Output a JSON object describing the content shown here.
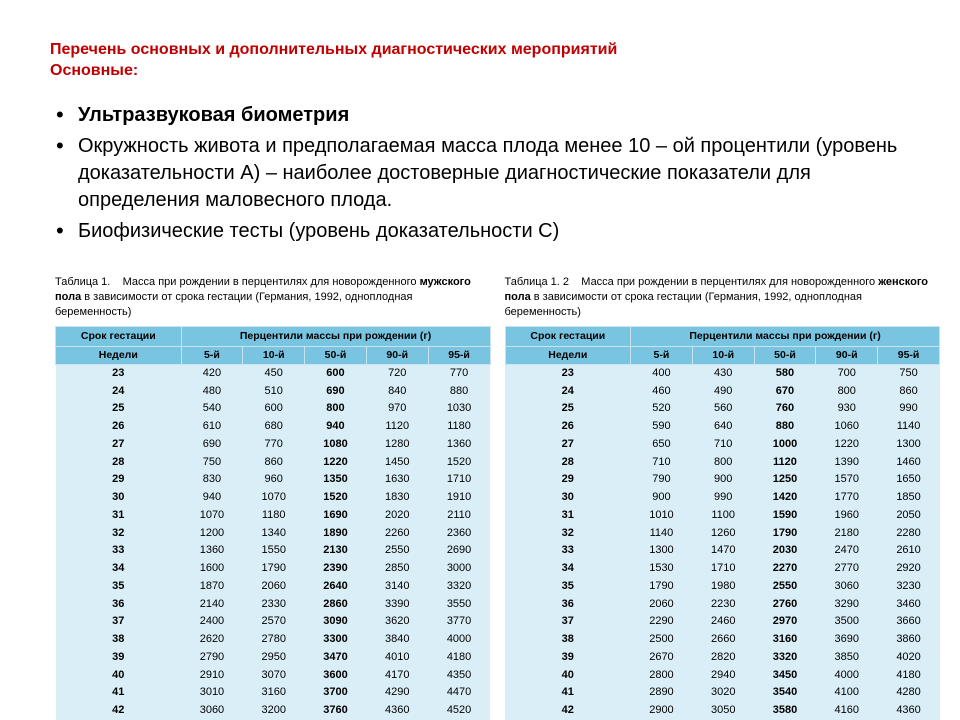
{
  "title_line1": "Перечень основных и дополнительных диагностических мероприятий",
  "title_line2": "Основные:",
  "bullets": [
    "Ультразвуковая биометрия",
    "Окружность живота и предполагаемая масса плода менее 10 – ой процентили (уровень доказательности А) – наиболее достоверные диагностические показатели для определения маловесного плода.",
    "Биофизические тесты (уровень доказательности С)"
  ],
  "table_header_group": "Перцентили массы при рождении (г)",
  "table_header_week_lbl_top": "Срок гестации",
  "table_header_week_lbl_bot": "Недели",
  "percentile_labels": [
    "5-й",
    "10-й",
    "50-й",
    "90-й",
    "95-й"
  ],
  "table_male": {
    "caption_prefix": "Таблица 1.",
    "caption_body": "Масса при рождении в перцентилях для новорожденного ",
    "caption_highlight": "мужского пола",
    "caption_suffix": " в зависимости от срока гестации (Германия, 1992, одноплодная беременность)",
    "rows": [
      [
        "23",
        "420",
        "450",
        "600",
        "720",
        "770"
      ],
      [
        "24",
        "480",
        "510",
        "690",
        "840",
        "880"
      ],
      [
        "25",
        "540",
        "600",
        "800",
        "970",
        "1030"
      ],
      [
        "26",
        "610",
        "680",
        "940",
        "1120",
        "1180"
      ],
      [
        "27",
        "690",
        "770",
        "1080",
        "1280",
        "1360"
      ],
      [
        "28",
        "750",
        "860",
        "1220",
        "1450",
        "1520"
      ],
      [
        "29",
        "830",
        "960",
        "1350",
        "1630",
        "1710"
      ],
      [
        "30",
        "940",
        "1070",
        "1520",
        "1830",
        "1910"
      ],
      [
        "31",
        "1070",
        "1180",
        "1690",
        "2020",
        "2110"
      ],
      [
        "32",
        "1200",
        "1340",
        "1890",
        "2260",
        "2360"
      ],
      [
        "33",
        "1360",
        "1550",
        "2130",
        "2550",
        "2690"
      ],
      [
        "34",
        "1600",
        "1790",
        "2390",
        "2850",
        "3000"
      ],
      [
        "35",
        "1870",
        "2060",
        "2640",
        "3140",
        "3320"
      ],
      [
        "36",
        "2140",
        "2330",
        "2860",
        "3390",
        "3550"
      ],
      [
        "37",
        "2400",
        "2570",
        "3090",
        "3620",
        "3770"
      ],
      [
        "38",
        "2620",
        "2780",
        "3300",
        "3840",
        "4000"
      ],
      [
        "39",
        "2790",
        "2950",
        "3470",
        "4010",
        "4180"
      ],
      [
        "40",
        "2910",
        "3070",
        "3600",
        "4170",
        "4350"
      ],
      [
        "41",
        "3010",
        "3160",
        "3700",
        "4290",
        "4470"
      ],
      [
        "42",
        "3060",
        "3200",
        "3760",
        "4360",
        "4520"
      ]
    ]
  },
  "table_female": {
    "caption_prefix": "Таблица 1. 2",
    "caption_body": "Масса при рождении в перцентилях для новорожденного ",
    "caption_highlight": "женского пола",
    "caption_suffix": " в зависимости от срока гестации (Германия, 1992, одноплодная беременность)",
    "rows": [
      [
        "23",
        "400",
        "430",
        "580",
        "700",
        "750"
      ],
      [
        "24",
        "460",
        "490",
        "670",
        "800",
        "860"
      ],
      [
        "25",
        "520",
        "560",
        "760",
        "930",
        "990"
      ],
      [
        "26",
        "590",
        "640",
        "880",
        "1060",
        "1140"
      ],
      [
        "27",
        "650",
        "710",
        "1000",
        "1220",
        "1300"
      ],
      [
        "28",
        "710",
        "800",
        "1120",
        "1390",
        "1460"
      ],
      [
        "29",
        "790",
        "900",
        "1250",
        "1570",
        "1650"
      ],
      [
        "30",
        "900",
        "990",
        "1420",
        "1770",
        "1850"
      ],
      [
        "31",
        "1010",
        "1100",
        "1590",
        "1960",
        "2050"
      ],
      [
        "32",
        "1140",
        "1260",
        "1790",
        "2180",
        "2280"
      ],
      [
        "33",
        "1300",
        "1470",
        "2030",
        "2470",
        "2610"
      ],
      [
        "34",
        "1530",
        "1710",
        "2270",
        "2770",
        "2920"
      ],
      [
        "35",
        "1790",
        "1980",
        "2550",
        "3060",
        "3230"
      ],
      [
        "36",
        "2060",
        "2230",
        "2760",
        "3290",
        "3460"
      ],
      [
        "37",
        "2290",
        "2460",
        "2970",
        "3500",
        "3660"
      ],
      [
        "38",
        "2500",
        "2660",
        "3160",
        "3690",
        "3860"
      ],
      [
        "39",
        "2670",
        "2820",
        "3320",
        "3850",
        "4020"
      ],
      [
        "40",
        "2800",
        "2940",
        "3450",
        "4000",
        "4180"
      ],
      [
        "41",
        "2890",
        "3020",
        "3540",
        "4100",
        "4280"
      ],
      [
        "42",
        "2900",
        "3050",
        "3580",
        "4160",
        "4360"
      ]
    ]
  },
  "styling": {
    "title_color": "#c00000",
    "header_bg": "#79c4e0",
    "cell_bg": "#d9eef6",
    "caption_fontsize": 11,
    "table_fontsize": 11,
    "bullet_fontsize": 20
  }
}
